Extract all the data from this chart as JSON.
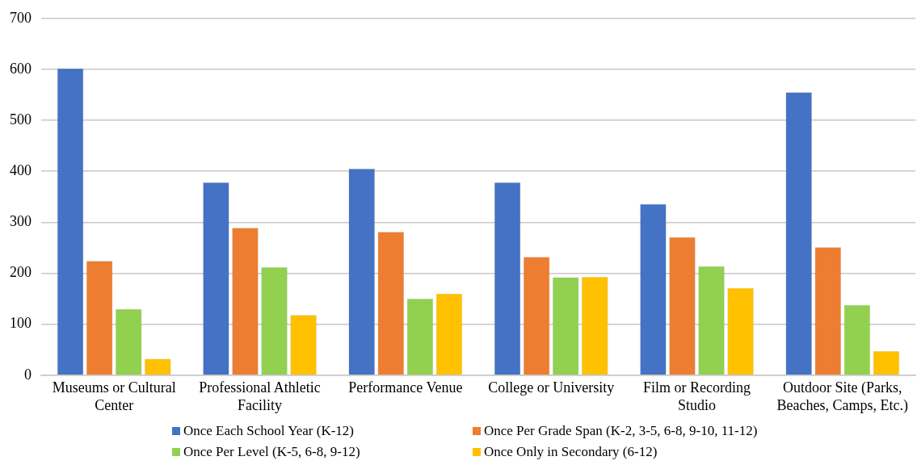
{
  "chart_data": {
    "type": "bar",
    "categories": [
      "Museums or Cultural Center",
      "Professional Athletic Facility",
      "Performance Venue",
      "College or University",
      "Film or Recording Studio",
      "Outdoor Site (Parks, Beaches, Camps, Etc.)"
    ],
    "series": [
      {
        "name": "Once Each School Year (K-12)",
        "color": "#4472c4",
        "values": [
          602,
          378,
          405,
          378,
          336,
          555
        ]
      },
      {
        "name": "Once Per Grade Span (K-2, 3-5, 6-8, 9-10, 11-12)",
        "color": "#ed7d31",
        "values": [
          224,
          289,
          281,
          232,
          271,
          251
        ]
      },
      {
        "name": "Once Per Level (K-5, 6-8, 9-12)",
        "color": "#92d050",
        "values": [
          130,
          212,
          150,
          192,
          214,
          138
        ]
      },
      {
        "name": "Once Only in Secondary (6-12)",
        "color": "#ffc000",
        "values": [
          32,
          118,
          160,
          193,
          171,
          47
        ]
      }
    ],
    "ylim": [
      0,
      700
    ],
    "yticks": [
      0,
      100,
      200,
      300,
      400,
      500,
      600,
      700
    ],
    "grid": "y",
    "legend": "bottom"
  }
}
